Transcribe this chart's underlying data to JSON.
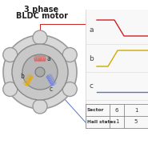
{
  "title_line1": "3 phase",
  "title_line2": "BLDC motor",
  "bg_color": "#ffffff",
  "coil_a_color": "#dd6666",
  "coil_b_color": "#ddaa22",
  "coil_c_color": "#7788dd",
  "line_a_color": "#cc2222",
  "line_b_color": "#ccaa00",
  "line_c_color": "#5577bb",
  "sector_vals": [
    "6",
    "1"
  ],
  "hall_vals": [
    "1",
    "5"
  ]
}
